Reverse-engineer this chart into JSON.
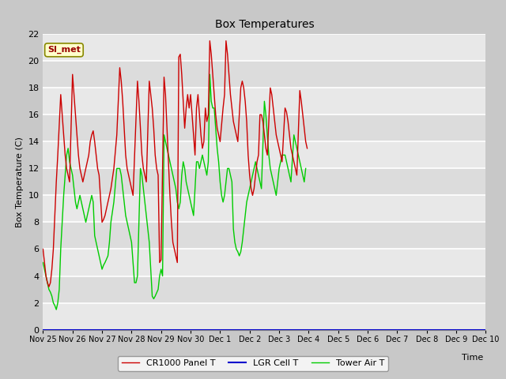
{
  "title": "Box Temperatures",
  "ylabel": "Box Temperature (C)",
  "xlabel": "Time",
  "ylim": [
    0,
    22
  ],
  "fig_bg_color": "#d0d0d0",
  "plot_bg_color": "#e8e8e8",
  "stripe_colors": [
    "#e0e0e0",
    "#f0f0f0"
  ],
  "grid_color": "#ffffff",
  "annotation_text": "SI_met",
  "annotation_bg": "#ffffcc",
  "annotation_border": "#888800",
  "annotation_text_color": "#990000",
  "legend_entries": [
    "CR1000 Panel T",
    "LGR Cell T",
    "Tower Air T"
  ],
  "line_colors": [
    "#cc0000",
    "#0000cc",
    "#00cc00"
  ],
  "series_cr1000": [
    [
      0.0,
      6.0
    ],
    [
      0.05,
      5.0
    ],
    [
      0.1,
      4.0
    ],
    [
      0.15,
      3.5
    ],
    [
      0.2,
      3.2
    ],
    [
      0.25,
      3.5
    ],
    [
      0.3,
      4.5
    ],
    [
      0.35,
      6.0
    ],
    [
      0.4,
      8.5
    ],
    [
      0.45,
      11.0
    ],
    [
      0.5,
      13.0
    ],
    [
      0.6,
      17.5
    ],
    [
      0.65,
      16.0
    ],
    [
      0.7,
      14.5
    ],
    [
      0.75,
      13.0
    ],
    [
      0.8,
      12.0
    ],
    [
      0.85,
      11.5
    ],
    [
      0.9,
      11.0
    ],
    [
      1.0,
      19.0
    ],
    [
      1.05,
      17.5
    ],
    [
      1.1,
      16.0
    ],
    [
      1.15,
      14.5
    ],
    [
      1.2,
      13.0
    ],
    [
      1.25,
      12.0
    ],
    [
      1.3,
      11.5
    ],
    [
      1.35,
      11.0
    ],
    [
      1.4,
      11.5
    ],
    [
      1.45,
      12.0
    ],
    [
      1.5,
      12.5
    ],
    [
      1.55,
      13.0
    ],
    [
      1.6,
      14.0
    ],
    [
      1.65,
      14.5
    ],
    [
      1.7,
      14.8
    ],
    [
      1.75,
      14.0
    ],
    [
      1.8,
      13.0
    ],
    [
      1.85,
      12.0
    ],
    [
      1.9,
      11.5
    ],
    [
      2.0,
      8.0
    ],
    [
      2.05,
      8.2
    ],
    [
      2.1,
      8.5
    ],
    [
      2.15,
      9.0
    ],
    [
      2.2,
      9.5
    ],
    [
      2.25,
      10.0
    ],
    [
      2.3,
      10.5
    ],
    [
      2.4,
      12.0
    ],
    [
      2.5,
      14.5
    ],
    [
      2.6,
      19.5
    ],
    [
      2.65,
      18.5
    ],
    [
      2.7,
      17.0
    ],
    [
      2.75,
      15.0
    ],
    [
      2.8,
      13.0
    ],
    [
      2.85,
      12.0
    ],
    [
      2.9,
      11.5
    ],
    [
      2.95,
      11.0
    ],
    [
      3.0,
      10.5
    ],
    [
      3.05,
      10.0
    ],
    [
      3.2,
      18.5
    ],
    [
      3.25,
      17.0
    ],
    [
      3.3,
      15.0
    ],
    [
      3.35,
      13.0
    ],
    [
      3.4,
      12.0
    ],
    [
      3.45,
      11.5
    ],
    [
      3.5,
      11.0
    ],
    [
      3.6,
      18.5
    ],
    [
      3.65,
      17.5
    ],
    [
      3.7,
      16.5
    ],
    [
      3.75,
      15.0
    ],
    [
      3.8,
      13.0
    ],
    [
      3.85,
      12.0
    ],
    [
      3.9,
      11.5
    ],
    [
      3.95,
      5.0
    ],
    [
      4.0,
      5.2
    ],
    [
      4.1,
      18.8
    ],
    [
      4.15,
      17.5
    ],
    [
      4.2,
      15.0
    ],
    [
      4.25,
      12.5
    ],
    [
      4.3,
      10.0
    ],
    [
      4.35,
      8.0
    ],
    [
      4.4,
      6.5
    ],
    [
      4.45,
      6.0
    ],
    [
      4.5,
      5.5
    ],
    [
      4.55,
      5.0
    ],
    [
      4.6,
      20.3
    ],
    [
      4.65,
      20.5
    ],
    [
      4.7,
      19.0
    ],
    [
      4.75,
      17.0
    ],
    [
      4.8,
      15.0
    ],
    [
      4.85,
      16.5
    ],
    [
      4.9,
      17.5
    ],
    [
      4.95,
      16.5
    ],
    [
      5.0,
      17.5
    ],
    [
      5.05,
      16.0
    ],
    [
      5.1,
      14.5
    ],
    [
      5.15,
      13.0
    ],
    [
      5.2,
      16.5
    ],
    [
      5.25,
      17.5
    ],
    [
      5.3,
      16.0
    ],
    [
      5.35,
      14.5
    ],
    [
      5.4,
      13.5
    ],
    [
      5.45,
      14.0
    ],
    [
      5.5,
      16.5
    ],
    [
      5.55,
      15.5
    ],
    [
      5.6,
      16.0
    ],
    [
      5.65,
      21.5
    ],
    [
      5.7,
      20.5
    ],
    [
      5.75,
      19.0
    ],
    [
      5.8,
      17.5
    ],
    [
      5.85,
      16.0
    ],
    [
      5.9,
      15.0
    ],
    [
      5.95,
      14.5
    ],
    [
      6.0,
      14.0
    ],
    [
      6.1,
      16.5
    ],
    [
      6.15,
      17.5
    ],
    [
      6.2,
      21.5
    ],
    [
      6.25,
      20.5
    ],
    [
      6.3,
      19.0
    ],
    [
      6.35,
      17.5
    ],
    [
      6.4,
      16.5
    ],
    [
      6.45,
      15.5
    ],
    [
      6.5,
      15.0
    ],
    [
      6.55,
      14.5
    ],
    [
      6.6,
      14.0
    ],
    [
      6.7,
      18.0
    ],
    [
      6.75,
      18.5
    ],
    [
      6.8,
      18.0
    ],
    [
      6.85,
      17.0
    ],
    [
      6.9,
      15.5
    ],
    [
      6.95,
      13.0
    ],
    [
      7.0,
      11.5
    ],
    [
      7.05,
      10.5
    ],
    [
      7.1,
      10.0
    ],
    [
      7.15,
      10.5
    ],
    [
      7.2,
      11.5
    ],
    [
      7.25,
      12.5
    ],
    [
      7.3,
      13.0
    ],
    [
      7.35,
      16.0
    ],
    [
      7.4,
      16.0
    ],
    [
      7.45,
      15.5
    ],
    [
      7.5,
      14.5
    ],
    [
      7.55,
      13.5
    ],
    [
      7.6,
      13.0
    ],
    [
      7.7,
      18.0
    ],
    [
      7.75,
      17.5
    ],
    [
      7.8,
      16.5
    ],
    [
      7.85,
      15.5
    ],
    [
      7.9,
      14.5
    ],
    [
      7.95,
      14.0
    ],
    [
      8.0,
      13.5
    ],
    [
      8.05,
      13.0
    ],
    [
      8.1,
      12.5
    ],
    [
      8.2,
      16.5
    ],
    [
      8.25,
      16.2
    ],
    [
      8.3,
      15.5
    ],
    [
      8.35,
      14.5
    ],
    [
      8.4,
      13.5
    ],
    [
      8.45,
      13.0
    ],
    [
      8.5,
      12.5
    ],
    [
      8.55,
      12.0
    ],
    [
      8.6,
      11.5
    ],
    [
      8.7,
      17.8
    ],
    [
      8.75,
      17.0
    ],
    [
      8.8,
      16.0
    ],
    [
      8.85,
      15.0
    ],
    [
      8.9,
      14.0
    ],
    [
      8.95,
      13.5
    ]
  ],
  "series_tower": [
    [
      0.0,
      5.0
    ],
    [
      0.05,
      4.5
    ],
    [
      0.1,
      4.0
    ],
    [
      0.15,
      3.5
    ],
    [
      0.2,
      3.0
    ],
    [
      0.25,
      2.8
    ],
    [
      0.3,
      2.5
    ],
    [
      0.35,
      2.0
    ],
    [
      0.4,
      1.8
    ],
    [
      0.45,
      1.5
    ],
    [
      0.5,
      2.0
    ],
    [
      0.55,
      3.0
    ],
    [
      0.6,
      6.0
    ],
    [
      0.65,
      8.0
    ],
    [
      0.7,
      10.0
    ],
    [
      0.75,
      11.5
    ],
    [
      0.8,
      13.0
    ],
    [
      0.85,
      13.5
    ],
    [
      0.9,
      12.5
    ],
    [
      1.0,
      11.5
    ],
    [
      1.05,
      10.5
    ],
    [
      1.1,
      9.5
    ],
    [
      1.15,
      9.0
    ],
    [
      1.2,
      9.5
    ],
    [
      1.25,
      10.0
    ],
    [
      1.3,
      9.5
    ],
    [
      1.35,
      9.0
    ],
    [
      1.4,
      8.5
    ],
    [
      1.45,
      8.0
    ],
    [
      1.5,
      8.5
    ],
    [
      1.55,
      9.0
    ],
    [
      1.6,
      9.5
    ],
    [
      1.65,
      10.0
    ],
    [
      1.7,
      9.5
    ],
    [
      1.75,
      7.0
    ],
    [
      1.8,
      6.5
    ],
    [
      1.85,
      6.0
    ],
    [
      2.0,
      4.5
    ],
    [
      2.05,
      4.8
    ],
    [
      2.1,
      5.0
    ],
    [
      2.2,
      5.5
    ],
    [
      2.25,
      6.5
    ],
    [
      2.3,
      8.0
    ],
    [
      2.4,
      9.5
    ],
    [
      2.5,
      12.0
    ],
    [
      2.6,
      12.0
    ],
    [
      2.65,
      11.5
    ],
    [
      2.7,
      10.5
    ],
    [
      2.75,
      9.5
    ],
    [
      2.8,
      8.5
    ],
    [
      2.85,
      8.0
    ],
    [
      2.9,
      7.5
    ],
    [
      2.95,
      7.0
    ],
    [
      3.0,
      6.5
    ],
    [
      3.1,
      3.5
    ],
    [
      3.15,
      3.5
    ],
    [
      3.2,
      4.0
    ],
    [
      3.3,
      12.0
    ],
    [
      3.35,
      11.5
    ],
    [
      3.4,
      10.5
    ],
    [
      3.45,
      9.5
    ],
    [
      3.5,
      8.5
    ],
    [
      3.55,
      7.5
    ],
    [
      3.6,
      6.5
    ],
    [
      3.7,
      2.5
    ],
    [
      3.75,
      2.3
    ],
    [
      3.8,
      2.5
    ],
    [
      3.9,
      3.0
    ],
    [
      3.95,
      4.0
    ],
    [
      4.0,
      4.5
    ],
    [
      4.05,
      4.0
    ],
    [
      4.1,
      14.5
    ],
    [
      4.15,
      14.0
    ],
    [
      4.2,
      13.5
    ],
    [
      4.25,
      13.0
    ],
    [
      4.3,
      12.5
    ],
    [
      4.35,
      12.0
    ],
    [
      4.4,
      11.5
    ],
    [
      4.45,
      11.0
    ],
    [
      4.5,
      10.5
    ],
    [
      4.55,
      9.5
    ],
    [
      4.6,
      9.0
    ],
    [
      4.65,
      9.5
    ],
    [
      4.7,
      11.5
    ],
    [
      4.75,
      12.5
    ],
    [
      4.8,
      12.0
    ],
    [
      4.85,
      11.0
    ],
    [
      4.9,
      10.5
    ],
    [
      4.95,
      10.0
    ],
    [
      5.0,
      9.5
    ],
    [
      5.05,
      9.0
    ],
    [
      5.1,
      8.5
    ],
    [
      5.2,
      12.5
    ],
    [
      5.25,
      12.5
    ],
    [
      5.3,
      12.0
    ],
    [
      5.35,
      12.5
    ],
    [
      5.4,
      13.0
    ],
    [
      5.45,
      12.5
    ],
    [
      5.5,
      12.0
    ],
    [
      5.55,
      11.5
    ],
    [
      5.6,
      12.5
    ],
    [
      5.65,
      19.0
    ],
    [
      5.7,
      17.0
    ],
    [
      5.75,
      16.5
    ],
    [
      5.8,
      16.5
    ],
    [
      5.85,
      15.0
    ],
    [
      5.9,
      13.5
    ],
    [
      5.95,
      12.5
    ],
    [
      6.0,
      11.0
    ],
    [
      6.05,
      10.0
    ],
    [
      6.1,
      9.5
    ],
    [
      6.15,
      10.0
    ],
    [
      6.2,
      11.0
    ],
    [
      6.25,
      12.0
    ],
    [
      6.3,
      12.0
    ],
    [
      6.35,
      11.5
    ],
    [
      6.4,
      11.0
    ],
    [
      6.45,
      7.5
    ],
    [
      6.5,
      6.5
    ],
    [
      6.55,
      6.0
    ],
    [
      6.6,
      5.8
    ],
    [
      6.65,
      5.5
    ],
    [
      6.7,
      5.8
    ],
    [
      6.75,
      6.5
    ],
    [
      6.8,
      7.5
    ],
    [
      6.85,
      8.5
    ],
    [
      6.9,
      9.5
    ],
    [
      7.0,
      10.5
    ],
    [
      7.05,
      11.0
    ],
    [
      7.1,
      11.5
    ],
    [
      7.15,
      12.0
    ],
    [
      7.2,
      12.5
    ],
    [
      7.25,
      12.0
    ],
    [
      7.3,
      11.5
    ],
    [
      7.35,
      11.0
    ],
    [
      7.4,
      10.5
    ],
    [
      7.5,
      17.0
    ],
    [
      7.55,
      16.0
    ],
    [
      7.6,
      14.5
    ],
    [
      7.65,
      13.0
    ],
    [
      7.7,
      12.0
    ],
    [
      7.75,
      11.5
    ],
    [
      7.8,
      11.0
    ],
    [
      7.85,
      10.5
    ],
    [
      7.9,
      10.0
    ],
    [
      8.0,
      12.0
    ],
    [
      8.05,
      12.5
    ],
    [
      8.1,
      13.0
    ],
    [
      8.15,
      13.0
    ],
    [
      8.2,
      13.0
    ],
    [
      8.25,
      12.5
    ],
    [
      8.3,
      12.0
    ],
    [
      8.35,
      11.5
    ],
    [
      8.4,
      11.0
    ],
    [
      8.5,
      14.5
    ],
    [
      8.55,
      14.0
    ],
    [
      8.6,
      13.5
    ],
    [
      8.65,
      13.0
    ],
    [
      8.7,
      12.5
    ],
    [
      8.75,
      12.0
    ],
    [
      8.8,
      11.5
    ],
    [
      8.85,
      11.0
    ],
    [
      8.9,
      12.0
    ]
  ],
  "x_tick_labels": [
    "Nov 25",
    "Nov 26",
    "Nov 27",
    "Nov 28",
    "Nov 29",
    "Nov 30",
    "Dec 1",
    "Dec 2",
    "Dec 3",
    "Dec 4",
    "Dec 5",
    "Dec 6",
    "Dec 7",
    "Dec 8",
    "Dec 9",
    "Dec 10"
  ],
  "x_tick_positions": [
    0,
    1,
    2,
    3,
    4,
    5,
    6,
    7,
    8,
    9,
    10,
    11,
    12,
    13,
    14,
    15
  ]
}
